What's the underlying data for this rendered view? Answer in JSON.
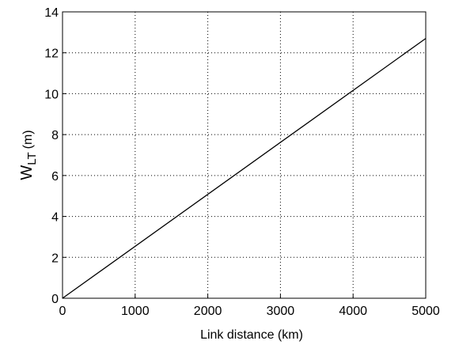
{
  "chart_data": {
    "type": "line",
    "xlabel": "Link distance (km)",
    "ylabel": "W",
    "ylabel_subscript": "LT",
    "ylabel_unit": "(m)",
    "x": [
      0,
      5000
    ],
    "series": [
      {
        "color": "#000000",
        "values": [
          0,
          12.7
        ]
      }
    ],
    "xlim": [
      0,
      5000
    ],
    "xticks": [
      0,
      1000,
      2000,
      3000,
      4000,
      5000
    ],
    "ylim": [
      0,
      14
    ],
    "yticks": [
      0,
      2,
      4,
      6,
      8,
      10,
      12,
      14
    ],
    "grid": true
  }
}
